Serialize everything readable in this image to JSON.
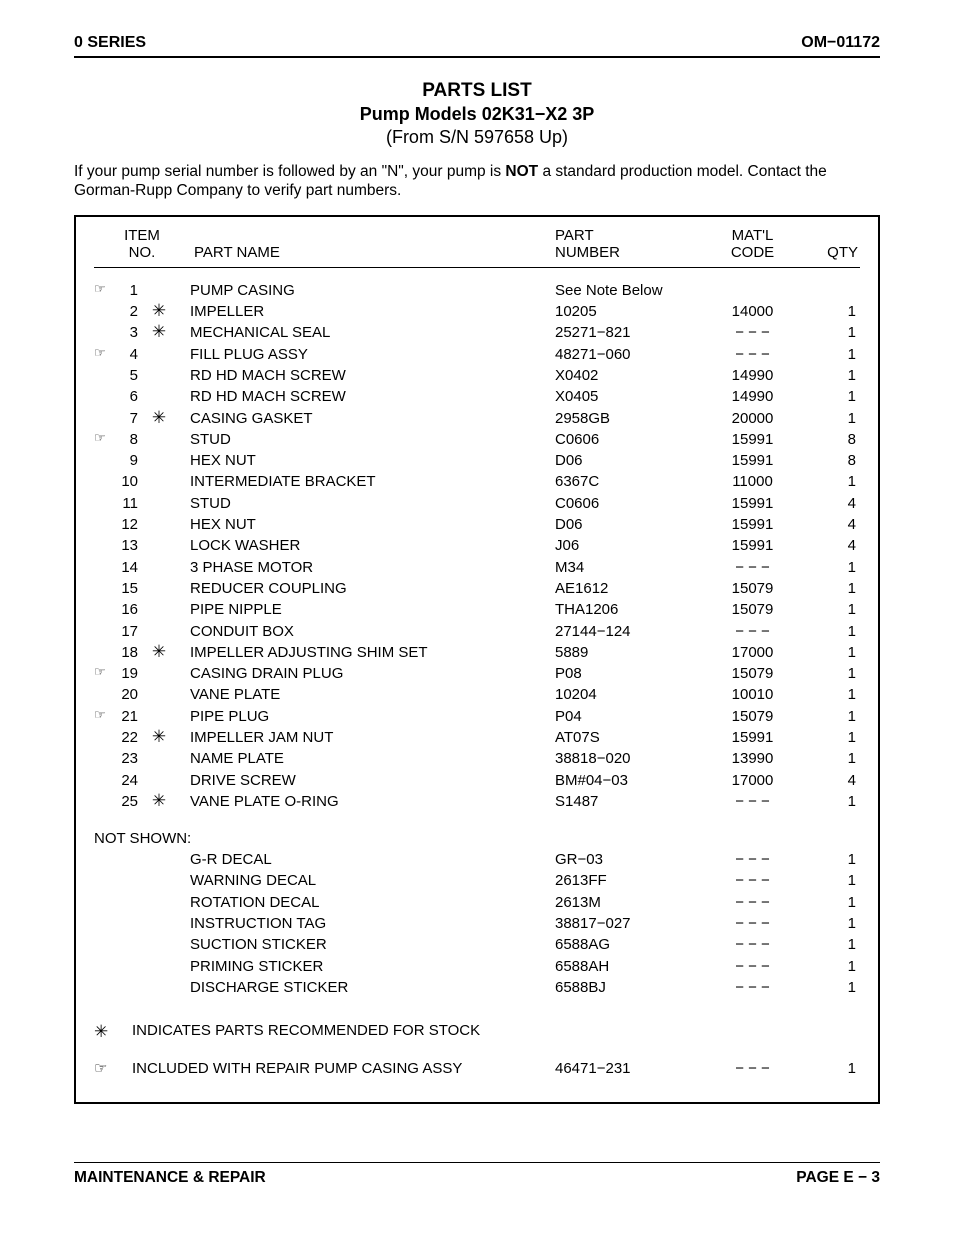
{
  "header": {
    "left": "0 SERIES",
    "right": "OM−01172"
  },
  "title": {
    "line1": "PARTS LIST",
    "line2": "Pump Models 02K31−X2 3P",
    "line3": "(From S/N 597658 Up)"
  },
  "intro": {
    "pre": "If your pump serial number is followed by an \"N\", your pump is ",
    "bold": "NOT",
    "post": " a standard production model. Contact the Gorman-Rupp Company to verify part numbers."
  },
  "columns": {
    "item_l1": "ITEM",
    "item_l2": "NO.",
    "partname": "PART NAME",
    "partnum_l1": "PART",
    "partnum_l2": "NUMBER",
    "matl_l1": "MAT'L",
    "matl_l2": "CODE",
    "qty": "QTY"
  },
  "rows": [
    {
      "mark": "☞",
      "item": "1",
      "star": "",
      "name": "PUMP CASING",
      "pnum": "See Note Below",
      "matl": "",
      "qty": ""
    },
    {
      "mark": "",
      "item": "2",
      "star": "✳",
      "name": "IMPELLER",
      "pnum": "10205",
      "matl": "14000",
      "qty": "1"
    },
    {
      "mark": "",
      "item": "3",
      "star": "✳",
      "name": "MECHANICAL SEAL",
      "pnum": "25271−821",
      "matl": "− − −",
      "qty": "1"
    },
    {
      "mark": "☞",
      "item": "4",
      "star": "",
      "name": "FILL PLUG ASSY",
      "pnum": "48271−060",
      "matl": "− − −",
      "qty": "1"
    },
    {
      "mark": "",
      "item": "5",
      "star": "",
      "name": "RD HD MACH SCREW",
      "pnum": "X0402",
      "matl": "14990",
      "qty": "1"
    },
    {
      "mark": "",
      "item": "6",
      "star": "",
      "name": "RD HD MACH SCREW",
      "pnum": "X0405",
      "matl": "14990",
      "qty": "1"
    },
    {
      "mark": "",
      "item": "7",
      "star": "✳",
      "name": "CASING GASKET",
      "pnum": "2958GB",
      "matl": "20000",
      "qty": "1"
    },
    {
      "mark": "☞",
      "item": "8",
      "star": "",
      "name": "STUD",
      "pnum": "C0606",
      "matl": "15991",
      "qty": "8"
    },
    {
      "mark": "",
      "item": "9",
      "star": "",
      "name": "HEX NUT",
      "pnum": "D06",
      "matl": "15991",
      "qty": "8"
    },
    {
      "mark": "",
      "item": "10",
      "star": "",
      "name": "INTERMEDIATE BRACKET",
      "pnum": "6367C",
      "matl": "11000",
      "qty": "1"
    },
    {
      "mark": "",
      "item": "11",
      "star": "",
      "name": "STUD",
      "pnum": "C0606",
      "matl": "15991",
      "qty": "4"
    },
    {
      "mark": "",
      "item": "12",
      "star": "",
      "name": "HEX NUT",
      "pnum": "D06",
      "matl": "15991",
      "qty": "4"
    },
    {
      "mark": "",
      "item": "13",
      "star": "",
      "name": "LOCK WASHER",
      "pnum": "J06",
      "matl": "15991",
      "qty": "4"
    },
    {
      "mark": "",
      "item": "14",
      "star": "",
      "name": "3 PHASE MOTOR",
      "pnum": "M34",
      "matl": "− − −",
      "qty": "1"
    },
    {
      "mark": "",
      "item": "15",
      "star": "",
      "name": "REDUCER COUPLING",
      "pnum": "AE1612",
      "matl": "15079",
      "qty": "1"
    },
    {
      "mark": "",
      "item": "16",
      "star": "",
      "name": "PIPE NIPPLE",
      "pnum": "THA1206",
      "matl": "15079",
      "qty": "1"
    },
    {
      "mark": "",
      "item": "17",
      "star": "",
      "name": "CONDUIT BOX",
      "pnum": "27144−124",
      "matl": "− − −",
      "qty": "1"
    },
    {
      "mark": "",
      "item": "18",
      "star": "✳",
      "name": "IMPELLER ADJUSTING SHIM SET",
      "pnum": "5889",
      "matl": "17000",
      "qty": "1"
    },
    {
      "mark": "☞",
      "item": "19",
      "star": "",
      "name": "CASING DRAIN PLUG",
      "pnum": "P08",
      "matl": "15079",
      "qty": "1"
    },
    {
      "mark": "",
      "item": "20",
      "star": "",
      "name": "VANE PLATE",
      "pnum": "10204",
      "matl": "10010",
      "qty": "1"
    },
    {
      "mark": "☞",
      "item": "21",
      "star": "",
      "name": "PIPE PLUG",
      "pnum": "P04",
      "matl": "15079",
      "qty": "1"
    },
    {
      "mark": "",
      "item": "22",
      "star": "✳",
      "name": "IMPELLER JAM NUT",
      "pnum": "AT07S",
      "matl": "15991",
      "qty": "1"
    },
    {
      "mark": "",
      "item": "23",
      "star": "",
      "name": "NAME PLATE",
      "pnum": "38818−020",
      "matl": "13990",
      "qty": "1"
    },
    {
      "mark": "",
      "item": "24",
      "star": "",
      "name": "DRIVE SCREW",
      "pnum": "BM#04−03",
      "matl": "17000",
      "qty": "4"
    },
    {
      "mark": "",
      "item": "25",
      "star": "✳",
      "name": "VANE PLATE O-RING",
      "pnum": "S1487",
      "matl": "− − −",
      "qty": "1"
    }
  ],
  "not_shown_label": "NOT SHOWN:",
  "not_shown": [
    {
      "name": "G-R DECAL",
      "pnum": "GR−03",
      "matl": "− − −",
      "qty": "1"
    },
    {
      "name": "WARNING DECAL",
      "pnum": "2613FF",
      "matl": "− − −",
      "qty": "1"
    },
    {
      "name": "ROTATION DECAL",
      "pnum": "2613M",
      "matl": "− − −",
      "qty": "1"
    },
    {
      "name": "INSTRUCTION TAG",
      "pnum": "38817−027",
      "matl": "− − −",
      "qty": "1"
    },
    {
      "name": "SUCTION STICKER",
      "pnum": "6588AG",
      "matl": "− − −",
      "qty": "1"
    },
    {
      "name": "PRIMING STICKER",
      "pnum": "6588AH",
      "matl": "− − −",
      "qty": "1"
    },
    {
      "name": "DISCHARGE STICKER",
      "pnum": "6588BJ",
      "matl": "− − −",
      "qty": "1"
    }
  ],
  "legend": {
    "stock": {
      "mark": "✳",
      "text": "INDICATES PARTS RECOMMENDED FOR STOCK",
      "pnum": "",
      "matl": "",
      "qty": ""
    },
    "assy": {
      "mark": "☞",
      "text": "INCLUDED WITH REPAIR PUMP CASING ASSY",
      "pnum": "46471−231",
      "matl": "− − −",
      "qty": "1"
    }
  },
  "footer": {
    "left": "MAINTENANCE & REPAIR",
    "right": "PAGE E − 3"
  }
}
